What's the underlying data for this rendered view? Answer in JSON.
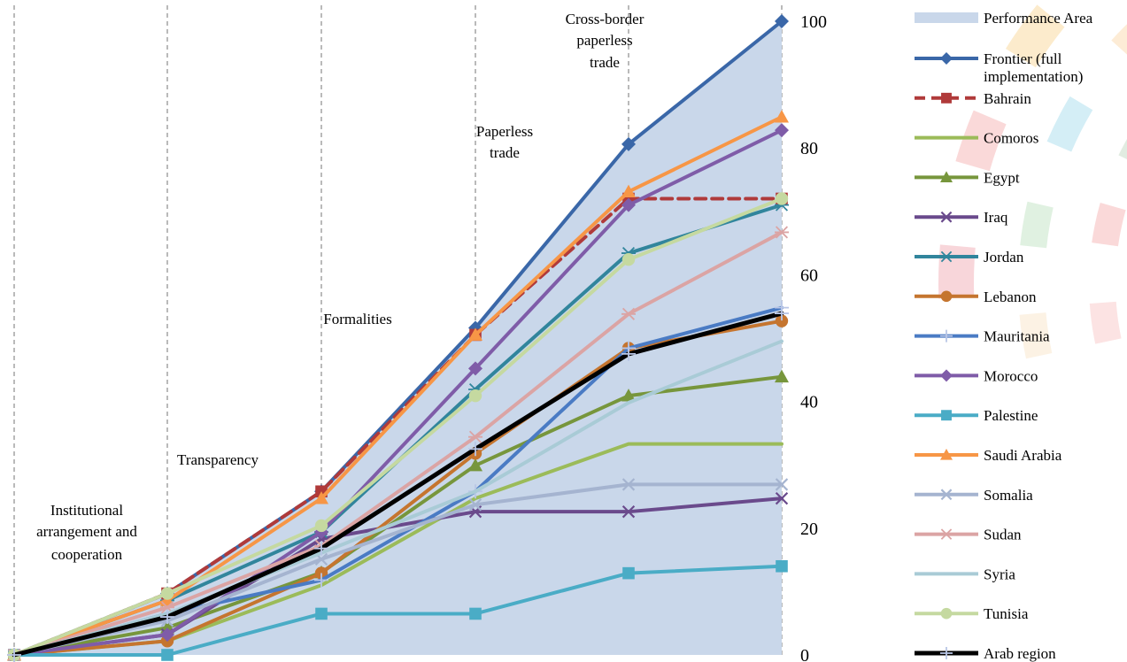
{
  "chart_data": {
    "type": "line",
    "title": "",
    "xlabel": "",
    "ylabel": "",
    "ylim": [
      0,
      100
    ],
    "y_ticks": [
      0,
      20,
      40,
      60,
      80,
      100
    ],
    "y_axis_side": "right",
    "grid": "vertical dashed lines at each stage",
    "legend_position": "right",
    "stage_labels": [
      "Institutional arrangement and cooperation",
      "Transparency",
      "Formalities",
      "Paperless trade",
      "Cross-border paperless trade"
    ],
    "area_series": {
      "name": "Performance Area",
      "color": "#c9d7ea",
      "values": [
        0,
        9.7,
        25.8,
        51.6,
        80.6,
        100
      ]
    },
    "series": [
      {
        "name": "Frontier (full implementation)",
        "color": "#3a67a8",
        "marker": "diamond",
        "dash": false,
        "width": 4,
        "values": [
          0,
          9.7,
          25.8,
          51.6,
          80.6,
          100
        ]
      },
      {
        "name": "Bahrain",
        "color": "#b03a3a",
        "marker": "square",
        "dash": true,
        "width": 4,
        "values": [
          0,
          9.7,
          25.8,
          50.5,
          72.0,
          72.0
        ]
      },
      {
        "name": "Comoros",
        "color": "#9bbb59",
        "marker": "none",
        "dash": false,
        "width": 4,
        "values": [
          0,
          2.2,
          11.0,
          24.7,
          33.3,
          33.3
        ]
      },
      {
        "name": "Egypt",
        "color": "#77963c",
        "marker": "triangle",
        "dash": false,
        "width": 4,
        "values": [
          0,
          4.3,
          13.0,
          29.9,
          40.9,
          43.9
        ]
      },
      {
        "name": "Iraq",
        "color": "#6a4a8c",
        "marker": "x",
        "dash": false,
        "width": 4,
        "values": [
          0,
          3.2,
          18.3,
          22.6,
          22.6,
          24.7
        ]
      },
      {
        "name": "Jordan",
        "color": "#31859c",
        "marker": "star",
        "dash": false,
        "width": 4,
        "values": [
          0,
          8.6,
          19.4,
          41.9,
          63.4,
          71.0
        ]
      },
      {
        "name": "Lebanon",
        "color": "#c5752f",
        "marker": "circle",
        "dash": false,
        "width": 4,
        "values": [
          0,
          2.2,
          12.9,
          31.8,
          48.4,
          52.7
        ]
      },
      {
        "name": "Mauritania",
        "color": "#4a7bc4",
        "marker": "plus",
        "dash": false,
        "width": 4,
        "values": [
          0,
          6.5,
          11.8,
          25.8,
          48.4,
          54.8
        ]
      },
      {
        "name": "Morocco",
        "color": "#7f5ca8",
        "marker": "diamond",
        "dash": false,
        "width": 4,
        "values": [
          0,
          3.2,
          19.4,
          45.2,
          71.0,
          82.8
        ]
      },
      {
        "name": "Palestine",
        "color": "#4aacc6",
        "marker": "square",
        "dash": false,
        "width": 4,
        "values": [
          0,
          0,
          6.5,
          6.5,
          12.9,
          14.0
        ]
      },
      {
        "name": "Saudi Arabia",
        "color": "#f79646",
        "marker": "triangle",
        "dash": false,
        "width": 4,
        "values": [
          0,
          8.6,
          24.7,
          50.5,
          73.1,
          84.9
        ]
      },
      {
        "name": "Somalia",
        "color": "#a5b4d0",
        "marker": "x",
        "dash": false,
        "width": 4,
        "values": [
          0,
          5.4,
          15.1,
          23.7,
          26.9,
          26.9
        ]
      },
      {
        "name": "Sudan",
        "color": "#dba4a4",
        "marker": "star",
        "dash": false,
        "width": 4,
        "values": [
          0,
          7.5,
          17.2,
          34.4,
          53.8,
          66.7
        ]
      },
      {
        "name": "Syria",
        "color": "#a9cbd6",
        "marker": "none",
        "dash": false,
        "width": 4,
        "values": [
          0,
          6.5,
          16.1,
          25.8,
          39.8,
          49.5
        ]
      },
      {
        "name": "Tunisia",
        "color": "#c5d9a0",
        "marker": "circle",
        "dash": false,
        "width": 4,
        "values": [
          0,
          9.7,
          20.4,
          40.9,
          62.4,
          72.0
        ]
      },
      {
        "name": "Arab region",
        "color": "#000000",
        "marker": "plus",
        "dash": false,
        "width": 5,
        "values": [
          0,
          6.0,
          16.8,
          32.5,
          47.5,
          53.9
        ]
      }
    ],
    "decoration": {
      "colors": [
        "#cfe6f3",
        "#dce9dc",
        "#fde9cf",
        "#f9d2d2",
        "#ccebf4",
        "#fbe7c3",
        "#dbefdc",
        "#fbdede",
        "#fbf0df",
        "#f7cfd3"
      ]
    }
  }
}
